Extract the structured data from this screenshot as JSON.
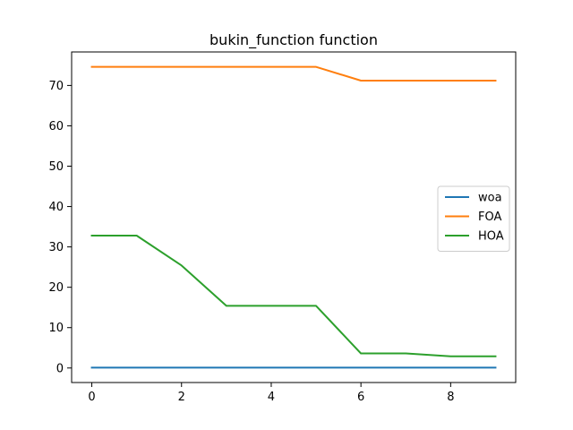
{
  "chart_data": {
    "type": "line",
    "title": "bukin_function function",
    "xlabel": "",
    "ylabel": "",
    "x": [
      0,
      1,
      2,
      3,
      4,
      5,
      6,
      7,
      8,
      9
    ],
    "series": [
      {
        "name": "woa",
        "color": "#1f77b4",
        "values": [
          0.1,
          0.1,
          0.1,
          0.1,
          0.1,
          0.1,
          0.1,
          0.1,
          0.1,
          0.1
        ]
      },
      {
        "name": "FOA",
        "color": "#ff7f0e",
        "values": [
          74.6,
          74.6,
          74.6,
          74.6,
          74.6,
          74.6,
          71.2,
          71.2,
          71.2,
          71.2
        ]
      },
      {
        "name": "HOA",
        "color": "#2ca02c",
        "values": [
          32.8,
          32.8,
          25.4,
          15.4,
          15.4,
          15.4,
          3.6,
          3.6,
          2.9,
          2.9
        ]
      }
    ],
    "xlim": [
      -0.45,
      9.45
    ],
    "ylim": [
      -3.6,
      78.3
    ],
    "xticks": [
      0,
      2,
      4,
      6,
      8
    ],
    "yticks": [
      0,
      10,
      20,
      30,
      40,
      50,
      60,
      70
    ],
    "grid": false,
    "legend": "center-right"
  }
}
